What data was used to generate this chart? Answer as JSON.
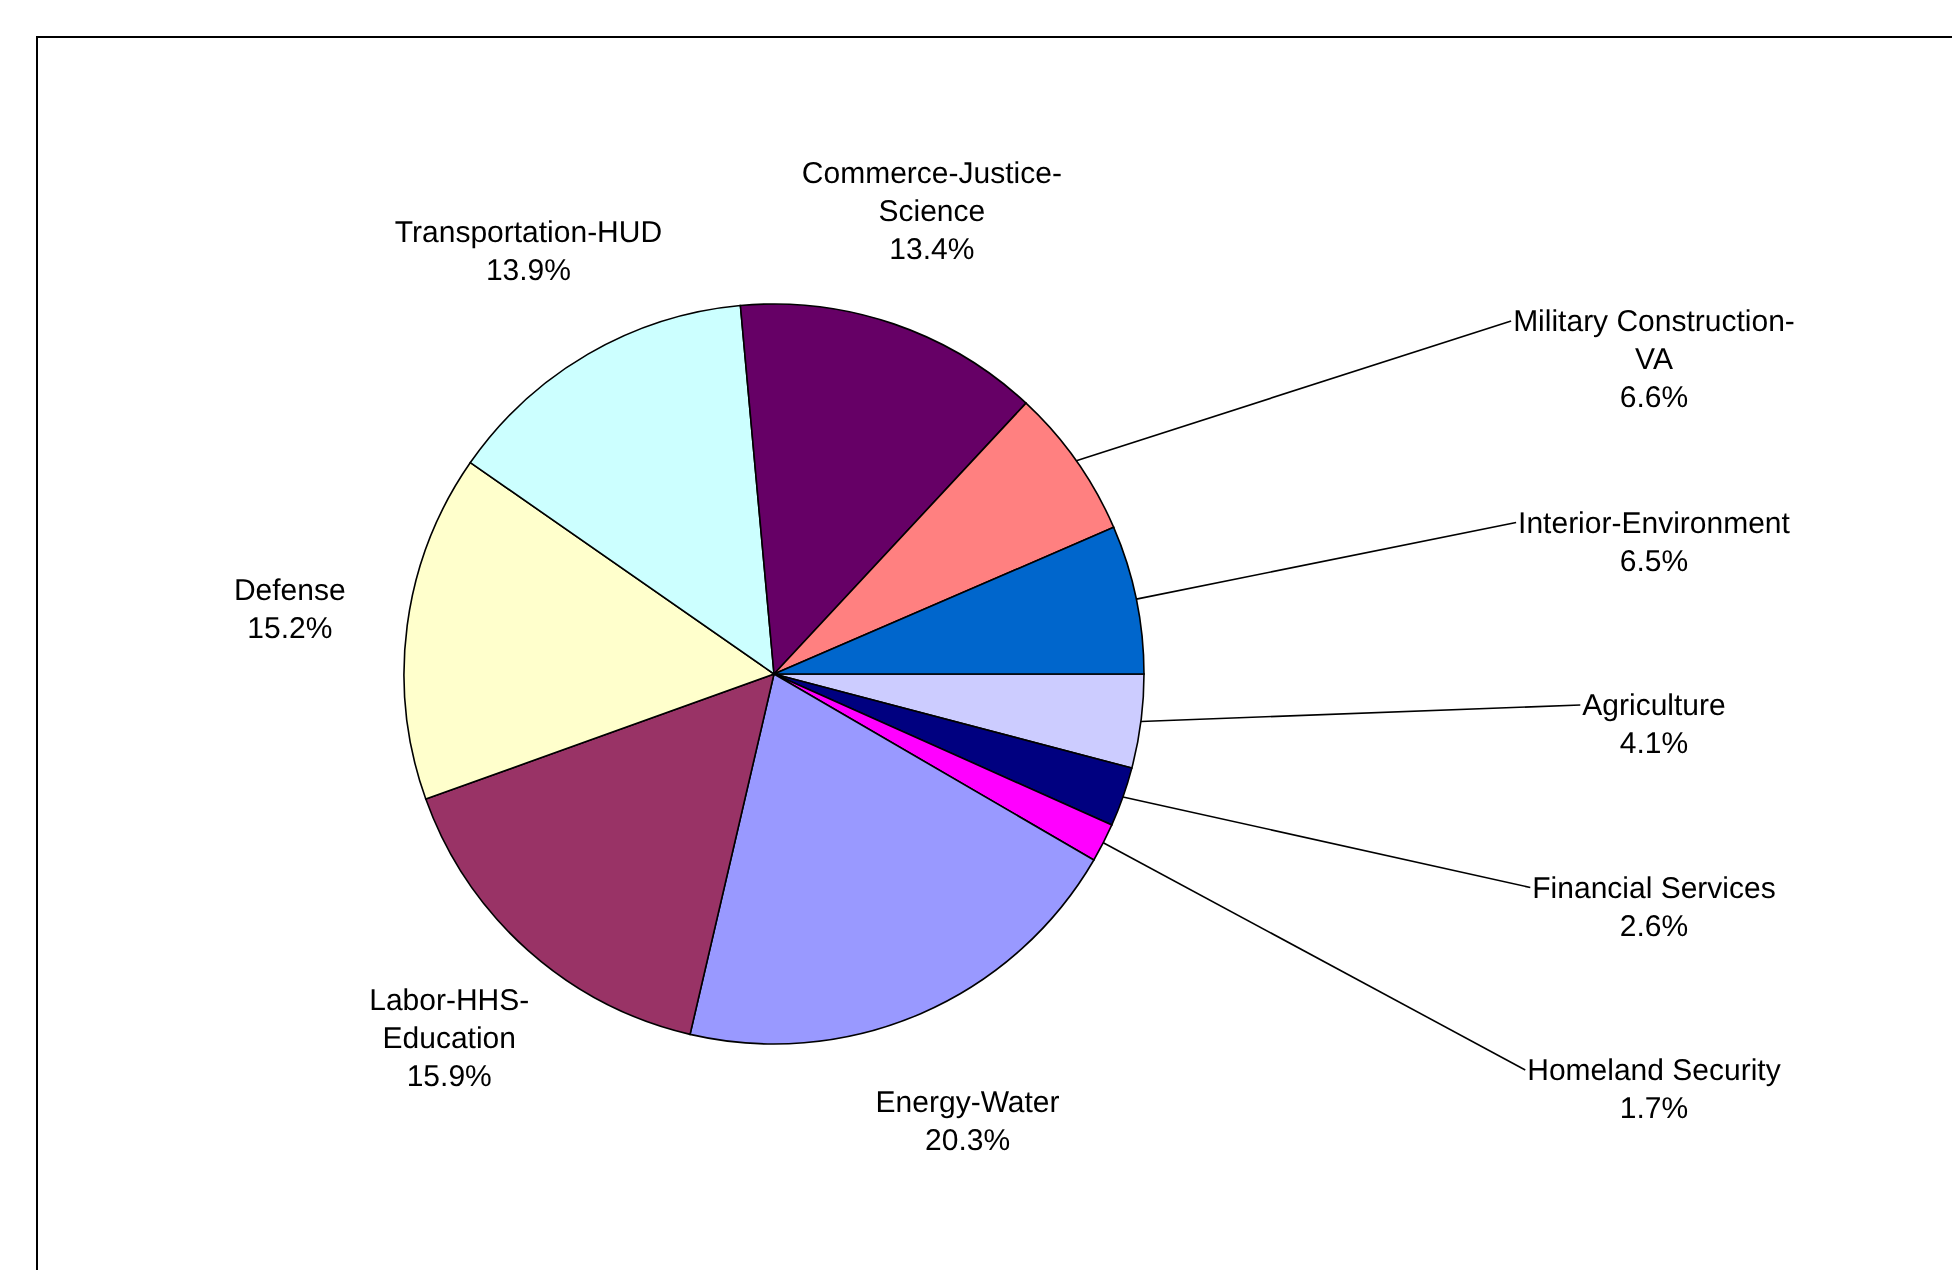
{
  "chart_data": {
    "type": "pie",
    "categories": [
      "Agriculture",
      "Financial Services",
      "Homeland Security",
      "Energy-Water",
      "Labor-HHS-Education",
      "Defense",
      "Transportation-HUD",
      "Commerce-Justice-Science",
      "Military Construction-VA",
      "Interior-Environment"
    ],
    "values": [
      4.1,
      2.6,
      1.7,
      20.3,
      15.9,
      15.2,
      13.9,
      13.4,
      6.6,
      6.5
    ],
    "value_labels": [
      "4.1%",
      "2.6%",
      "1.7%",
      "20.3%",
      "15.9%",
      "15.2%",
      "13.9%",
      "13.4%",
      "6.6%",
      "6.5%"
    ],
    "colors": [
      "#ccccff",
      "#000080",
      "#ff00ff",
      "#9999ff",
      "#993366",
      "#ffffcc",
      "#ccffff",
      "#660066",
      "#ff8080",
      "#0066cc"
    ]
  }
}
